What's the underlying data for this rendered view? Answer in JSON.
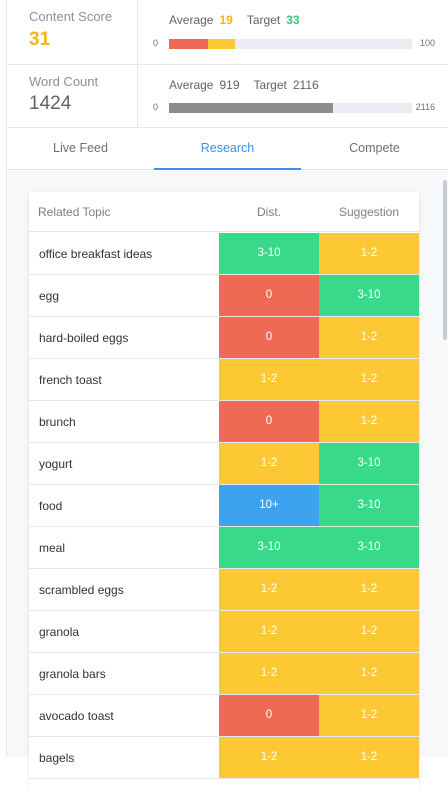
{
  "content_score": {
    "title": "Content Score",
    "value": "31",
    "average_label": "Average",
    "average_value": "19",
    "target_label": "Target",
    "target_value": "33",
    "bar_min": "0",
    "bar_max": "100",
    "bar_fill_red_fraction": 0.16,
    "bar_fill_yellow_fraction": 0.11
  },
  "word_count": {
    "title": "Word Count",
    "value": "1424",
    "average_label": "Average",
    "average_value": "919",
    "target_label": "Target",
    "target_value": "2116",
    "bar_min": "0",
    "bar_max": "2116",
    "bar_fill_fraction": 0.673
  },
  "tabs": [
    {
      "label": "Live Feed",
      "active": false
    },
    {
      "label": "Research",
      "active": true
    },
    {
      "label": "Compete",
      "active": false
    }
  ],
  "table": {
    "headers": {
      "topic": "Related Topic",
      "dist": "Dist.",
      "suggestion": "Suggestion"
    },
    "rows": [
      {
        "topic": "office breakfast ideas",
        "dist": "3-10",
        "suggestion": "1-2"
      },
      {
        "topic": "egg",
        "dist": "0",
        "suggestion": "3-10"
      },
      {
        "topic": "hard-boiled eggs",
        "dist": "0",
        "suggestion": "1-2"
      },
      {
        "topic": "french toast",
        "dist": "1-2",
        "suggestion": "1-2"
      },
      {
        "topic": "brunch",
        "dist": "0",
        "suggestion": "1-2"
      },
      {
        "topic": "yogurt",
        "dist": "1-2",
        "suggestion": "3-10"
      },
      {
        "topic": "food",
        "dist": "10+",
        "suggestion": "3-10"
      },
      {
        "topic": "meal",
        "dist": "3-10",
        "suggestion": "3-10"
      },
      {
        "topic": "scrambled eggs",
        "dist": "1-2",
        "suggestion": "1-2"
      },
      {
        "topic": "granola",
        "dist": "1-2",
        "suggestion": "1-2"
      },
      {
        "topic": "granola bars",
        "dist": "1-2",
        "suggestion": "1-2"
      },
      {
        "topic": "avocado toast",
        "dist": "0",
        "suggestion": "1-2"
      },
      {
        "topic": "bagels",
        "dist": "1-2",
        "suggestion": "1-2"
      }
    ]
  },
  "colors": {
    "red": "#ee6a55",
    "yellow": "#fcc834",
    "green": "#39d98a",
    "blue": "#3da3f0",
    "bar_gray": "#8d8d8d",
    "accent": "#3a93e8"
  },
  "value_colors": {
    "0": "red",
    "1-2": "yellow",
    "3-10": "green",
    "10+": "blue"
  }
}
